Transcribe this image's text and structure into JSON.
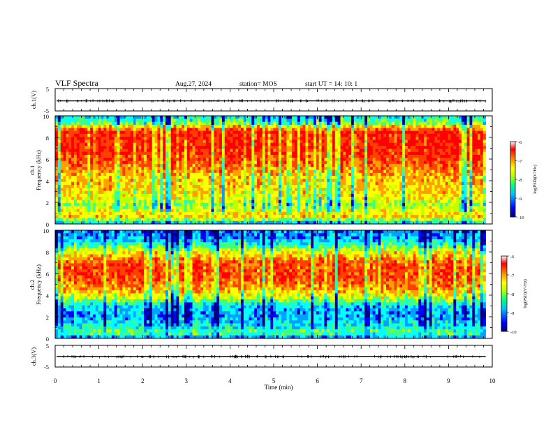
{
  "header": {
    "title": "VLF Spectra",
    "date": "Aug.27, 2024",
    "station": "station= MOS",
    "start": "start  UT  =   14: 10: 1"
  },
  "colors": {
    "jet": [
      "#00007f",
      "#0000ff",
      "#00a0ff",
      "#00ffff",
      "#40ff80",
      "#c0ff00",
      "#ffff00",
      "#ffa000",
      "#ff4000",
      "#ff0000",
      "#ffffff"
    ]
  },
  "chart_data": [
    {
      "type": "line",
      "name": "ch1-waveform",
      "ylabel": "ch.1(V)",
      "ylim": [
        -5,
        5
      ],
      "yticks": [
        "5",
        "-5"
      ],
      "xlim": [
        0,
        10
      ],
      "level": -0.5
    },
    {
      "type": "heatmap",
      "name": "ch1-spectrogram",
      "ylabel": "Frequency (kHz)",
      "channel_label": "ch.1",
      "ylim": [
        0,
        10
      ],
      "yticks": [
        "0",
        "2",
        "4",
        "6",
        "8",
        "10"
      ],
      "xlim": [
        0,
        10
      ],
      "data_end_min": 9.85,
      "colorbar": {
        "label": "log(PSD)(V²/Hz)",
        "ticks": [
          "-6",
          "-7",
          "-8",
          "-9",
          "-10"
        ],
        "range": [
          -10,
          -6
        ]
      },
      "profile_khz": [
        0,
        0.3,
        0.7,
        1.2,
        1.8,
        2.5,
        3.5,
        4.5,
        5.5,
        6.5,
        7.5,
        8.5,
        9.0,
        9.4,
        10
      ],
      "profile_level": [
        0.25,
        0.45,
        0.7,
        0.6,
        0.5,
        0.62,
        0.66,
        0.7,
        0.8,
        0.86,
        0.88,
        0.9,
        0.7,
        0.42,
        0.3
      ]
    },
    {
      "type": "heatmap",
      "name": "ch2-spectrogram",
      "ylabel": "Frequency (kHz)",
      "channel_label": "ch.2",
      "ylim": [
        0,
        10
      ],
      "yticks": [
        "0",
        "2",
        "4",
        "6",
        "8",
        "10"
      ],
      "xlim": [
        0,
        10
      ],
      "data_end_min": 9.85,
      "colorbar": {
        "label": "log(PSD)(V²/Hz)",
        "ticks": [
          "-6",
          "-7",
          "-8",
          "-9",
          "-10"
        ],
        "range": [
          -10,
          -6
        ]
      },
      "profile_khz": [
        0,
        0.2,
        0.6,
        1.0,
        1.5,
        2.2,
        3.0,
        3.8,
        4.5,
        5.5,
        6.5,
        7.2,
        8.0,
        8.6,
        9.2,
        10
      ],
      "profile_level": [
        0.1,
        0.35,
        0.45,
        0.35,
        0.3,
        0.22,
        0.3,
        0.55,
        0.72,
        0.82,
        0.84,
        0.8,
        0.6,
        0.4,
        0.25,
        0.2
      ]
    },
    {
      "type": "line",
      "name": "ch3-waveform",
      "ylabel": "ch.3(V)",
      "ylim": [
        -5,
        5
      ],
      "yticks": [
        "5",
        "-5"
      ],
      "xlim": [
        0,
        10
      ],
      "level": -0.2,
      "xlabel": "Time  (min)",
      "xticks": [
        "0",
        "1",
        "2",
        "3",
        "4",
        "5",
        "6",
        "7",
        "8",
        "9",
        "10"
      ]
    }
  ]
}
